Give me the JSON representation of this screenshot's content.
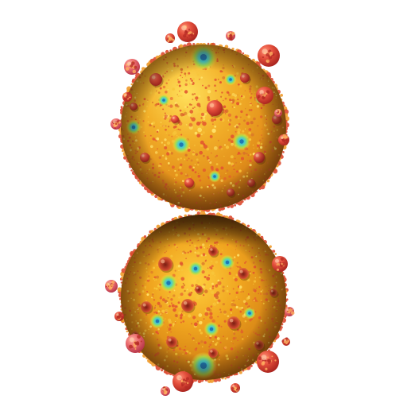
{
  "image": {
    "subject": "fractal-sphere-pair",
    "background_color": "#ffffff",
    "palette": {
      "base_orange": "#f0a21a",
      "deep_orange": "#c96d0b",
      "bump_red": "#d9432f",
      "bump_pink": "#e95f6a",
      "highlight_yellow": "#ffe15a",
      "green_spot": "#8fd04a",
      "cyan_spot": "#39c6d6",
      "shadow_brown": "#4a2a0a"
    },
    "objects": [
      {
        "name": "upper-fractal-sphere"
      },
      {
        "name": "lower-fractal-sphere"
      }
    ]
  }
}
